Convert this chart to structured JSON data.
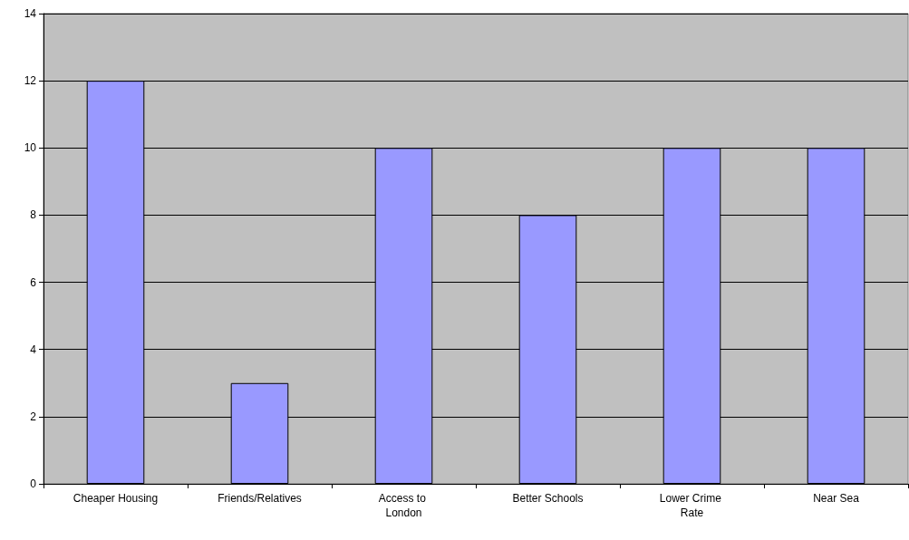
{
  "chart_data": {
    "type": "bar",
    "categories": [
      "Cheaper Housing",
      "Friends/Relatives",
      "Access to London",
      "Better Schools",
      "Lower Crime Rate",
      "Near Sea"
    ],
    "values": [
      12,
      3,
      10,
      8,
      10,
      10
    ],
    "color": "#9999ff",
    "ylim": [
      0,
      14
    ],
    "yticks": [
      0,
      2,
      4,
      6,
      8,
      10,
      12,
      14
    ],
    "grid": "y"
  }
}
